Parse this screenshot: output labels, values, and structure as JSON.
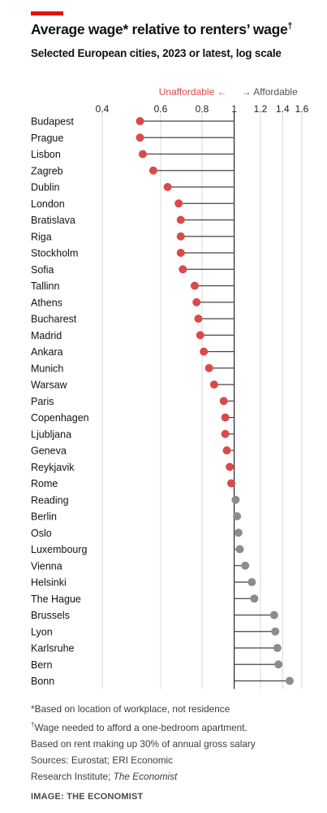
{
  "header": {
    "title_main": "Average wage* relative to renters’ wage",
    "title_mark": "†",
    "subtitle": "Selected European cities, 2023 or latest, log scale"
  },
  "chart_data": {
    "type": "lollipop",
    "scale": "log",
    "xlim": [
      0.4,
      1.6
    ],
    "reference": 1,
    "tick_values": [
      0.4,
      0.6,
      0.8,
      1,
      1.2,
      1.4,
      1.6
    ],
    "tick_labels": [
      "0.4",
      "0.6",
      "0.8",
      "1",
      "1.2",
      "1.4",
      "1.6"
    ],
    "direction_labels": {
      "left": "Unaffordable ←",
      "right": "→ Affordable"
    },
    "colors": {
      "below": "#d94a4a",
      "above": "#8c8c8c",
      "stem": "#444444",
      "grid": "#d9d9d9",
      "left_label": "#d94a4a",
      "right_label": "#555555"
    },
    "categories": [
      "Budapest",
      "Prague",
      "Lisbon",
      "Zagreb",
      "Dublin",
      "London",
      "Bratislava",
      "Riga",
      "Stockholm",
      "Sofia",
      "Tallinn",
      "Athens",
      "Bucharest",
      "Madrid",
      "Ankara",
      "Munich",
      "Warsaw",
      "Paris",
      "Copenhagen",
      "Ljubljana",
      "Geneva",
      "Reykjavik",
      "Rome",
      "Reading",
      "Berlin",
      "Oslo",
      "Luxembourg",
      "Vienna",
      "Helsinki",
      "The Hague",
      "Brussels",
      "Lyon",
      "Karlsruhe",
      "Bern",
      "Bonn"
    ],
    "values": [
      0.52,
      0.52,
      0.53,
      0.57,
      0.63,
      0.68,
      0.69,
      0.69,
      0.69,
      0.7,
      0.76,
      0.77,
      0.78,
      0.79,
      0.81,
      0.84,
      0.87,
      0.93,
      0.94,
      0.94,
      0.95,
      0.97,
      0.98,
      1.01,
      1.02,
      1.03,
      1.04,
      1.08,
      1.13,
      1.15,
      1.32,
      1.33,
      1.35,
      1.36,
      1.47
    ]
  },
  "notes": {
    "n1": "*Based on location of workplace, not residence",
    "n2_mark": "†",
    "n2": "Wage needed to afford a one-bedroom apartment.",
    "n3": "Based on rent making up 30% of annual gross salary",
    "n4": "Sources: Eurostat; ERI Economic",
    "n5a": "Research Institute; ",
    "n5b": "The Economist"
  },
  "credit": "IMAGE: THE ECONOMIST"
}
